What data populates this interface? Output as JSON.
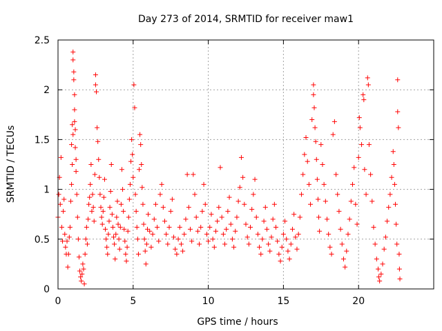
{
  "chart_data": {
    "type": "scatter",
    "title": "Day 273 of 2014, SRMTID for receiver maw1",
    "xlabel": "GPS time / hours",
    "ylabel": "SRMTID / TECUs",
    "xlim": [
      0,
      25
    ],
    "ylim": [
      0,
      2.5
    ],
    "xticks": [
      0,
      5,
      10,
      15,
      20
    ],
    "xtick_labels": [
      "0",
      "5",
      "10",
      "15",
      "20"
    ],
    "yticks": [
      0,
      0.5,
      1,
      1.5,
      2,
      2.5
    ],
    "ytick_labels": [
      "0",
      "0.5",
      "1",
      "1.5",
      "2",
      "2.5"
    ],
    "grid": true,
    "marker": "+",
    "color": "#ff0000",
    "series": [
      {
        "name": "SRMTID",
        "points": [
          [
            0.0,
            0.72
          ],
          [
            0.05,
            0.95
          ],
          [
            0.1,
            1.12
          ],
          [
            0.15,
            0.85
          ],
          [
            0.2,
            1.32
          ],
          [
            0.25,
            0.62
          ],
          [
            0.3,
            0.48
          ],
          [
            0.35,
            0.78
          ],
          [
            0.4,
            0.9
          ],
          [
            0.45,
            0.55
          ],
          [
            0.5,
            0.42
          ],
          [
            0.55,
            0.35
          ],
          [
            0.6,
            0.48
          ],
          [
            0.65,
            0.22
          ],
          [
            0.7,
            0.35
          ],
          [
            0.75,
            0.52
          ],
          [
            0.8,
            0.62
          ],
          [
            0.85,
            0.88
          ],
          [
            0.9,
            1.05
          ],
          [
            0.95,
            1.25
          ],
          [
            0.95,
            1.65
          ],
          [
            1.0,
            2.38
          ],
          [
            1.0,
            2.3
          ],
          [
            1.05,
            2.18
          ],
          [
            1.05,
            2.1
          ],
          [
            1.1,
            1.95
          ],
          [
            1.1,
            1.8
          ],
          [
            1.15,
            1.6
          ],
          [
            1.15,
            1.42
          ],
          [
            1.2,
            1.3
          ],
          [
            0.9,
            1.45
          ],
          [
            1.0,
            1.55
          ],
          [
            1.1,
            1.68
          ],
          [
            1.2,
            1.18
          ],
          [
            1.25,
            0.95
          ],
          [
            1.3,
            0.72
          ],
          [
            1.35,
            0.5
          ],
          [
            1.4,
            0.32
          ],
          [
            1.45,
            0.18
          ],
          [
            1.5,
            0.12
          ],
          [
            1.55,
            0.08
          ],
          [
            1.6,
            0.15
          ],
          [
            1.65,
            0.25
          ],
          [
            1.7,
            0.2
          ],
          [
            1.75,
            0.05
          ],
          [
            1.8,
            0.35
          ],
          [
            1.85,
            0.5
          ],
          [
            1.9,
            0.62
          ],
          [
            1.95,
            0.45
          ],
          [
            2.0,
            0.7
          ],
          [
            2.05,
            0.85
          ],
          [
            2.1,
            0.92
          ],
          [
            2.15,
            1.05
          ],
          [
            2.2,
            1.25
          ],
          [
            2.25,
            0.78
          ],
          [
            2.3,
            0.95
          ],
          [
            2.35,
            0.82
          ],
          [
            2.4,
            0.68
          ],
          [
            2.45,
            1.15
          ],
          [
            2.5,
            2.15
          ],
          [
            2.5,
            2.05
          ],
          [
            2.55,
            1.98
          ],
          [
            2.6,
            1.62
          ],
          [
            2.65,
            1.48
          ],
          [
            2.7,
            1.3
          ],
          [
            2.75,
            1.12
          ],
          [
            2.8,
            0.95
          ],
          [
            2.85,
            0.82
          ],
          [
            2.9,
            0.72
          ],
          [
            2.95,
            0.65
          ],
          [
            3.0,
            0.78
          ],
          [
            3.05,
            0.92
          ],
          [
            3.1,
            1.1
          ],
          [
            3.15,
            0.6
          ],
          [
            3.2,
            0.5
          ],
          [
            3.25,
            0.42
          ],
          [
            3.3,
            0.35
          ],
          [
            3.35,
            0.55
          ],
          [
            3.4,
            0.68
          ],
          [
            3.45,
            0.82
          ],
          [
            3.5,
            0.98
          ],
          [
            3.55,
            1.25
          ],
          [
            3.6,
            0.75
          ],
          [
            3.65,
            0.62
          ],
          [
            3.7,
            0.52
          ],
          [
            3.75,
            0.45
          ],
          [
            3.8,
            0.3
          ],
          [
            3.85,
            0.55
          ],
          [
            3.9,
            0.72
          ],
          [
            3.95,
            0.88
          ],
          [
            4.0,
            0.65
          ],
          [
            4.05,
            0.5
          ],
          [
            4.1,
            0.4
          ],
          [
            4.15,
            0.62
          ],
          [
            4.2,
            0.85
          ],
          [
            4.25,
            1.2
          ],
          [
            4.3,
            1.0
          ],
          [
            4.35,
            0.78
          ],
          [
            4.4,
            0.6
          ],
          [
            4.45,
            0.48
          ],
          [
            4.5,
            0.35
          ],
          [
            4.55,
            0.28
          ],
          [
            4.6,
            0.42
          ],
          [
            4.65,
            0.58
          ],
          [
            4.7,
            0.72
          ],
          [
            4.75,
            0.9
          ],
          [
            4.8,
            1.05
          ],
          [
            4.85,
            1.28
          ],
          [
            4.9,
            1.5
          ],
          [
            4.95,
            1.35
          ],
          [
            5.0,
            1.12
          ],
          [
            5.05,
            2.05
          ],
          [
            5.1,
            1.82
          ],
          [
            5.15,
            0.95
          ],
          [
            5.2,
            0.78
          ],
          [
            5.25,
            0.62
          ],
          [
            5.3,
            0.5
          ],
          [
            5.35,
            0.35
          ],
          [
            5.4,
            1.2
          ],
          [
            5.45,
            1.55
          ],
          [
            5.5,
            1.45
          ],
          [
            5.55,
            1.25
          ],
          [
            5.6,
            1.02
          ],
          [
            5.65,
            0.85
          ],
          [
            5.7,
            0.65
          ],
          [
            5.75,
            0.5
          ],
          [
            5.8,
            0.38
          ],
          [
            5.85,
            0.25
          ],
          [
            5.9,
            0.45
          ],
          [
            5.95,
            0.6
          ],
          [
            6.0,
            0.75
          ],
          [
            6.1,
            0.58
          ],
          [
            6.2,
            0.42
          ],
          [
            6.3,
            0.55
          ],
          [
            6.4,
            0.7
          ],
          [
            6.5,
            0.85
          ],
          [
            6.6,
            0.62
          ],
          [
            6.7,
            0.48
          ],
          [
            6.8,
            0.95
          ],
          [
            6.9,
            1.05
          ],
          [
            7.0,
            0.82
          ],
          [
            7.1,
            0.68
          ],
          [
            7.2,
            0.55
          ],
          [
            7.3,
            0.45
          ],
          [
            7.4,
            0.62
          ],
          [
            7.5,
            0.78
          ],
          [
            7.6,
            0.9
          ],
          [
            7.7,
            0.52
          ],
          [
            7.8,
            0.4
          ],
          [
            7.9,
            0.35
          ],
          [
            8.0,
            0.5
          ],
          [
            8.1,
            0.62
          ],
          [
            8.2,
            0.45
          ],
          [
            8.3,
            0.38
          ],
          [
            8.4,
            0.55
          ],
          [
            8.5,
            0.7
          ],
          [
            8.6,
            1.15
          ],
          [
            8.7,
            0.82
          ],
          [
            8.8,
            0.6
          ],
          [
            8.9,
            0.48
          ],
          [
            9.0,
            1.15
          ],
          [
            9.1,
            0.95
          ],
          [
            9.2,
            0.72
          ],
          [
            9.3,
            0.58
          ],
          [
            9.4,
            0.45
          ],
          [
            9.5,
            0.62
          ],
          [
            9.6,
            0.78
          ],
          [
            9.7,
            1.05
          ],
          [
            9.8,
            0.85
          ],
          [
            9.9,
            0.55
          ],
          [
            10.0,
            0.48
          ],
          [
            10.1,
            0.62
          ],
          [
            10.2,
            0.75
          ],
          [
            10.3,
            0.5
          ],
          [
            10.4,
            0.42
          ],
          [
            10.5,
            0.58
          ],
          [
            10.6,
            0.68
          ],
          [
            10.7,
            0.82
          ],
          [
            10.8,
            1.22
          ],
          [
            10.9,
            0.72
          ],
          [
            11.0,
            0.55
          ],
          [
            11.1,
            0.45
          ],
          [
            11.2,
            0.6
          ],
          [
            11.3,
            0.78
          ],
          [
            11.4,
            0.92
          ],
          [
            11.5,
            0.65
          ],
          [
            11.6,
            0.5
          ],
          [
            11.7,
            0.42
          ],
          [
            11.8,
            0.58
          ],
          [
            11.9,
            0.72
          ],
          [
            12.0,
            0.88
          ],
          [
            12.1,
            1.02
          ],
          [
            12.2,
            1.32
          ],
          [
            12.3,
            1.12
          ],
          [
            12.4,
            0.85
          ],
          [
            12.5,
            0.65
          ],
          [
            12.6,
            0.52
          ],
          [
            12.7,
            0.45
          ],
          [
            12.8,
            0.62
          ],
          [
            12.9,
            0.8
          ],
          [
            13.0,
            0.95
          ],
          [
            13.1,
            1.1
          ],
          [
            13.2,
            0.72
          ],
          [
            13.3,
            0.55
          ],
          [
            13.4,
            0.42
          ],
          [
            13.5,
            0.35
          ],
          [
            13.6,
            0.5
          ],
          [
            13.7,
            0.68
          ],
          [
            13.8,
            0.82
          ],
          [
            13.9,
            0.6
          ],
          [
            14.0,
            0.45
          ],
          [
            14.1,
            0.38
          ],
          [
            14.2,
            0.52
          ],
          [
            14.3,
            0.7
          ],
          [
            14.4,
            0.85
          ],
          [
            14.5,
            0.62
          ],
          [
            14.6,
            0.48
          ],
          [
            14.7,
            0.35
          ],
          [
            14.8,
            0.28
          ],
          [
            14.9,
            0.42
          ],
          [
            15.0,
            0.55
          ],
          [
            15.1,
            0.68
          ],
          [
            15.2,
            0.5
          ],
          [
            15.3,
            0.38
          ],
          [
            15.4,
            0.3
          ],
          [
            15.5,
            0.45
          ],
          [
            15.6,
            0.6
          ],
          [
            15.7,
            0.75
          ],
          [
            15.8,
            0.52
          ],
          [
            15.9,
            0.4
          ],
          [
            16.0,
            0.55
          ],
          [
            16.1,
            0.72
          ],
          [
            16.2,
            0.95
          ],
          [
            16.3,
            1.15
          ],
          [
            16.4,
            1.35
          ],
          [
            16.5,
            1.52
          ],
          [
            16.6,
            1.28
          ],
          [
            16.7,
            1.05
          ],
          [
            16.8,
            0.85
          ],
          [
            16.9,
            1.7
          ],
          [
            17.0,
            2.05
          ],
          [
            17.0,
            1.95
          ],
          [
            17.05,
            1.82
          ],
          [
            17.1,
            1.62
          ],
          [
            17.15,
            1.48
          ],
          [
            17.2,
            1.3
          ],
          [
            17.25,
            1.1
          ],
          [
            17.3,
            0.9
          ],
          [
            17.35,
            0.72
          ],
          [
            17.4,
            0.58
          ],
          [
            17.5,
            1.45
          ],
          [
            17.6,
            1.25
          ],
          [
            17.7,
            1.05
          ],
          [
            17.8,
            0.88
          ],
          [
            17.9,
            0.7
          ],
          [
            18.0,
            0.55
          ],
          [
            18.1,
            0.42
          ],
          [
            18.2,
            0.35
          ],
          [
            18.3,
            1.55
          ],
          [
            18.4,
            1.68
          ],
          [
            18.5,
            1.15
          ],
          [
            18.6,
            0.95
          ],
          [
            18.7,
            0.78
          ],
          [
            18.8,
            0.6
          ],
          [
            18.9,
            0.45
          ],
          [
            19.0,
            0.3
          ],
          [
            19.1,
            0.22
          ],
          [
            19.2,
            0.38
          ],
          [
            19.3,
            0.55
          ],
          [
            19.4,
            0.7
          ],
          [
            19.5,
            0.88
          ],
          [
            19.6,
            1.05
          ],
          [
            19.7,
            1.22
          ],
          [
            19.8,
            0.85
          ],
          [
            19.9,
            0.65
          ],
          [
            20.0,
            1.32
          ],
          [
            20.05,
            1.72
          ],
          [
            20.1,
            1.62
          ],
          [
            20.2,
            1.45
          ],
          [
            20.3,
            1.95
          ],
          [
            20.35,
            1.9
          ],
          [
            20.4,
            1.2
          ],
          [
            20.5,
            0.95
          ],
          [
            20.6,
            2.12
          ],
          [
            20.65,
            2.05
          ],
          [
            20.7,
            1.45
          ],
          [
            20.8,
            1.15
          ],
          [
            20.9,
            0.88
          ],
          [
            21.0,
            0.62
          ],
          [
            21.1,
            0.45
          ],
          [
            21.2,
            0.3
          ],
          [
            21.3,
            0.2
          ],
          [
            21.35,
            0.12
          ],
          [
            21.4,
            0.08
          ],
          [
            21.5,
            0.15
          ],
          [
            21.6,
            0.25
          ],
          [
            21.7,
            0.4
          ],
          [
            21.8,
            0.52
          ],
          [
            21.9,
            0.68
          ],
          [
            22.0,
            0.82
          ],
          [
            22.1,
            0.95
          ],
          [
            22.2,
            1.12
          ],
          [
            22.3,
            1.38
          ],
          [
            22.35,
            1.25
          ],
          [
            22.4,
            1.05
          ],
          [
            22.45,
            0.85
          ],
          [
            22.5,
            0.65
          ],
          [
            22.55,
            0.45
          ],
          [
            22.6,
            1.78
          ],
          [
            22.6,
            2.1
          ],
          [
            22.65,
            1.62
          ],
          [
            22.7,
            0.35
          ],
          [
            22.72,
            0.2
          ],
          [
            22.75,
            0.1
          ]
        ]
      }
    ]
  }
}
